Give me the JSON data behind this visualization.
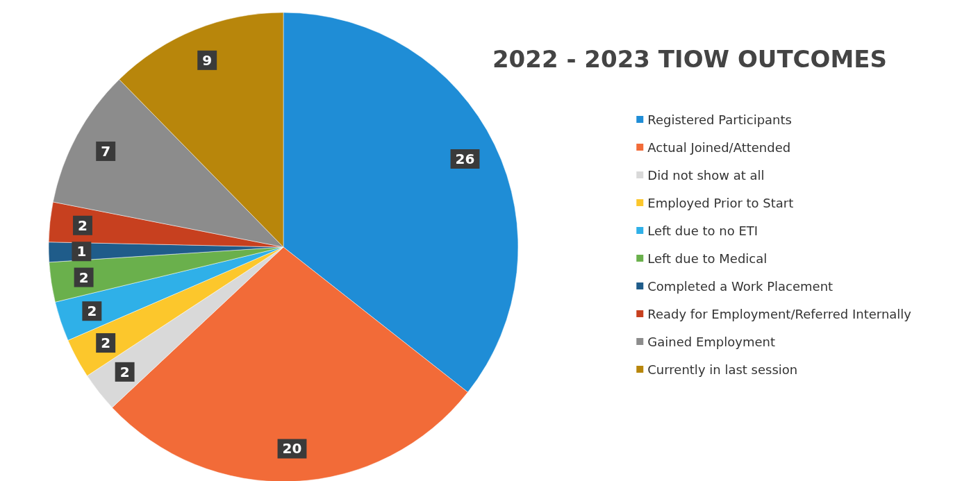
{
  "chart_data": {
    "type": "pie",
    "title": "2022 - 2023 TIOW OUTCOMES",
    "categories": [
      "Registered Participants",
      "Actual Joined/Attended",
      "Did not show at all",
      "Employed Prior to Start",
      "Left due to no ETI",
      "Left due to Medical",
      "Completed a Work Placement",
      "Ready for Employment/Referred Internally",
      "Gained Employment",
      "Currently in last session"
    ],
    "values": [
      26,
      20,
      2,
      2,
      2,
      2,
      1,
      2,
      7,
      9
    ],
    "colors": [
      "#1f8dd6",
      "#f26b38",
      "#d9d9d9",
      "#fcc72c",
      "#2fb0e8",
      "#6ab04c",
      "#1f5c8a",
      "#c7401f",
      "#8c8c8c",
      "#b8860b"
    ],
    "data_labels": true,
    "legend": "right"
  }
}
